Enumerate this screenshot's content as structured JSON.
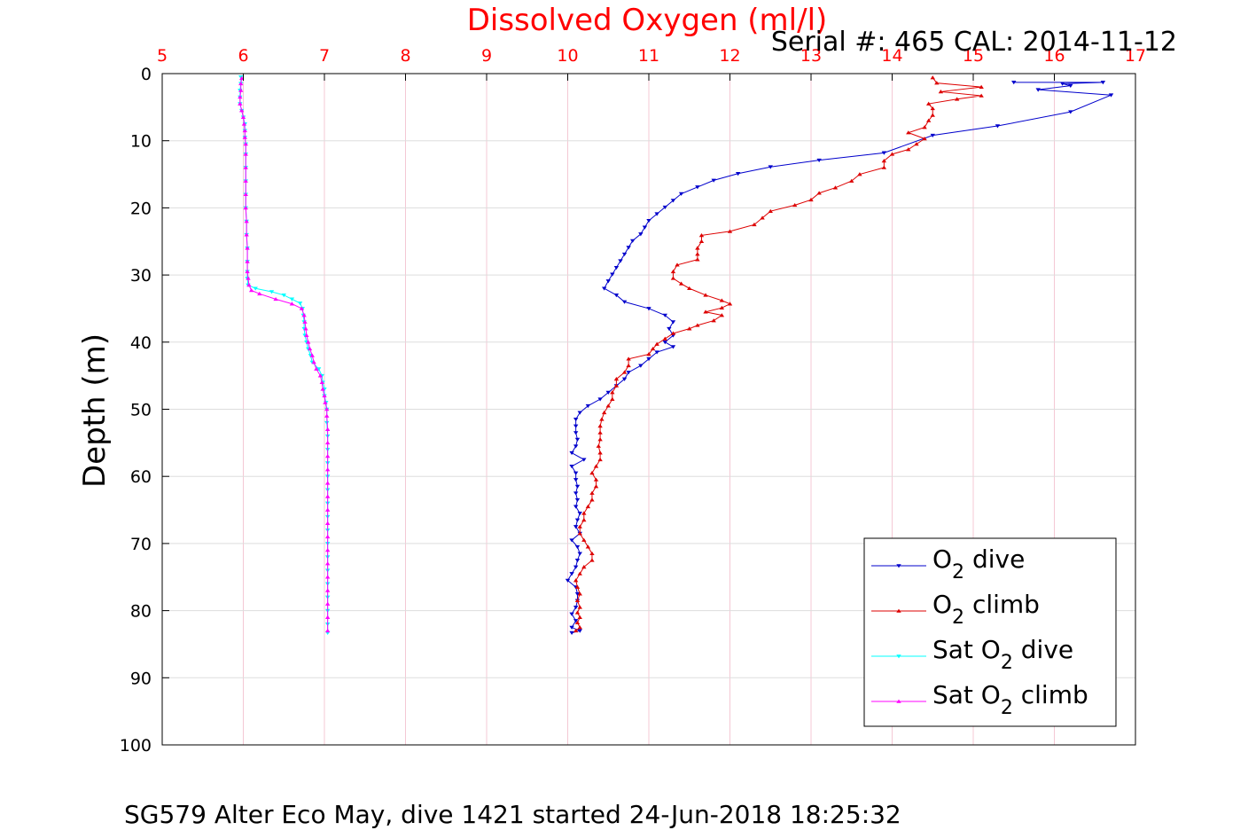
{
  "chart_data": {
    "type": "line",
    "title": "Dissolved Oxygen (ml/l)",
    "subtitle": "Serial #: 465  CAL: 2014-11-12",
    "footer": "SG579 Alter Eco May, dive 1421 started 24-Jun-2018 18:25:32",
    "xlabel": "Dissolved Oxygen (ml/l)",
    "ylabel": "Depth (m)",
    "xlim": [
      5,
      17
    ],
    "ylim": [
      0,
      100
    ],
    "y_reversed": true,
    "x_axis_position": "top",
    "grid": true,
    "legend_position": "bottom-right",
    "x_ticks": [
      "5",
      "6",
      "7",
      "8",
      "9",
      "10",
      "11",
      "12",
      "13",
      "14",
      "15",
      "16",
      "17"
    ],
    "y_ticks": [
      "0",
      "10",
      "20",
      "30",
      "40",
      "50",
      "60",
      "70",
      "80",
      "90",
      "100"
    ],
    "colors": {
      "title": "#ff0000",
      "xtick": "#ff0000",
      "axis": "#000000",
      "grid": "#dddddd",
      "xgrid": "#f4c8d4"
    },
    "series": [
      {
        "legend": {
          "base": "O",
          "sub": "2",
          "suffix": " dive"
        },
        "color": "#0000cc",
        "marker": "triangle-down",
        "points": [
          [
            15.5,
            1.3
          ],
          [
            16.6,
            1.3
          ],
          [
            16.1,
            1.5
          ],
          [
            16.2,
            1.8
          ],
          [
            15.8,
            2.4
          ],
          [
            16.7,
            3.2
          ],
          [
            16.2,
            5.7
          ],
          [
            15.3,
            7.8
          ],
          [
            14.5,
            9.2
          ],
          [
            13.9,
            11.8
          ],
          [
            13.1,
            12.9
          ],
          [
            12.5,
            13.9
          ],
          [
            12.1,
            14.9
          ],
          [
            11.8,
            15.9
          ],
          [
            11.6,
            16.9
          ],
          [
            11.4,
            17.9
          ],
          [
            11.3,
            18.9
          ],
          [
            11.2,
            19.9
          ],
          [
            11.1,
            20.9
          ],
          [
            11.0,
            21.9
          ],
          [
            10.95,
            22.9
          ],
          [
            10.9,
            23.9
          ],
          [
            10.8,
            24.9
          ],
          [
            10.75,
            25.9
          ],
          [
            10.7,
            26.9
          ],
          [
            10.65,
            27.9
          ],
          [
            10.6,
            28.9
          ],
          [
            10.55,
            29.9
          ],
          [
            10.5,
            30.9
          ],
          [
            10.45,
            32.0
          ],
          [
            10.6,
            33.0
          ],
          [
            10.7,
            34.0
          ],
          [
            11.0,
            35.0
          ],
          [
            11.2,
            36.0
          ],
          [
            11.3,
            37.0
          ],
          [
            11.25,
            38.0
          ],
          [
            11.3,
            39.0
          ],
          [
            11.2,
            40.0
          ],
          [
            11.3,
            40.7
          ],
          [
            11.1,
            41.5
          ],
          [
            11.0,
            42.5
          ],
          [
            10.9,
            43.5
          ],
          [
            10.75,
            44.5
          ],
          [
            10.7,
            45.5
          ],
          [
            10.6,
            46.5
          ],
          [
            10.5,
            47.5
          ],
          [
            10.4,
            48.5
          ],
          [
            10.25,
            49.5
          ],
          [
            10.15,
            50.5
          ],
          [
            10.1,
            51.5
          ],
          [
            10.1,
            52.5
          ],
          [
            10.1,
            53.5
          ],
          [
            10.12,
            54.5
          ],
          [
            10.1,
            55.5
          ],
          [
            10.05,
            56.5
          ],
          [
            10.2,
            57.5
          ],
          [
            10.05,
            58.5
          ],
          [
            10.1,
            59.5
          ],
          [
            10.1,
            60.5
          ],
          [
            10.12,
            61.5
          ],
          [
            10.1,
            62.5
          ],
          [
            10.12,
            63.5
          ],
          [
            10.1,
            64.5
          ],
          [
            10.15,
            65.5
          ],
          [
            10.12,
            66.5
          ],
          [
            10.1,
            67.5
          ],
          [
            10.15,
            68.5
          ],
          [
            10.05,
            69.5
          ],
          [
            10.12,
            70.5
          ],
          [
            10.15,
            71.5
          ],
          [
            10.12,
            72.5
          ],
          [
            10.1,
            73.5
          ],
          [
            10.05,
            74.5
          ],
          [
            10.0,
            75.5
          ],
          [
            10.1,
            76.5
          ],
          [
            10.12,
            77.5
          ],
          [
            10.12,
            78.5
          ],
          [
            10.1,
            79.5
          ],
          [
            10.05,
            80.5
          ],
          [
            10.1,
            81.5
          ],
          [
            10.05,
            82.5
          ],
          [
            10.15,
            83.0
          ],
          [
            10.05,
            83.3
          ]
        ]
      },
      {
        "legend": {
          "base": "O",
          "sub": "2",
          "suffix": " climb"
        },
        "color": "#dd0000",
        "marker": "triangle-up",
        "points": [
          [
            10.1,
            83.0
          ],
          [
            10.15,
            82.5
          ],
          [
            10.12,
            81.8
          ],
          [
            10.15,
            81.0
          ],
          [
            10.12,
            80.3
          ],
          [
            10.15,
            79.5
          ],
          [
            10.12,
            78.5
          ],
          [
            10.15,
            77.5
          ],
          [
            10.12,
            76.5
          ],
          [
            10.1,
            75.5
          ],
          [
            10.15,
            74.5
          ],
          [
            10.2,
            73.5
          ],
          [
            10.3,
            72.5
          ],
          [
            10.3,
            71.5
          ],
          [
            10.25,
            70.5
          ],
          [
            10.2,
            69.5
          ],
          [
            10.15,
            68.5
          ],
          [
            10.15,
            67.5
          ],
          [
            10.2,
            66.5
          ],
          [
            10.2,
            65.5
          ],
          [
            10.25,
            64.5
          ],
          [
            10.3,
            63.5
          ],
          [
            10.3,
            62.5
          ],
          [
            10.35,
            61.5
          ],
          [
            10.35,
            60.5
          ],
          [
            10.3,
            59.5
          ],
          [
            10.35,
            58.5
          ],
          [
            10.4,
            57.5
          ],
          [
            10.4,
            56.5
          ],
          [
            10.38,
            55.5
          ],
          [
            10.4,
            54.5
          ],
          [
            10.4,
            53.5
          ],
          [
            10.4,
            52.5
          ],
          [
            10.42,
            51.5
          ],
          [
            10.45,
            50.5
          ],
          [
            10.5,
            49.5
          ],
          [
            10.55,
            48.5
          ],
          [
            10.55,
            47.5
          ],
          [
            10.6,
            46.5
          ],
          [
            10.6,
            45.5
          ],
          [
            10.7,
            44.5
          ],
          [
            10.75,
            43.5
          ],
          [
            10.75,
            42.5
          ],
          [
            11.0,
            41.8
          ],
          [
            11.05,
            41.0
          ],
          [
            11.1,
            40.3
          ],
          [
            11.2,
            39.5
          ],
          [
            11.3,
            38.7
          ],
          [
            11.5,
            38.0
          ],
          [
            11.6,
            37.5
          ],
          [
            11.8,
            36.8
          ],
          [
            11.9,
            36.0
          ],
          [
            11.7,
            35.5
          ],
          [
            11.9,
            34.9
          ],
          [
            12.0,
            34.3
          ],
          [
            11.9,
            33.8
          ],
          [
            11.7,
            33.0
          ],
          [
            11.5,
            32.0
          ],
          [
            11.4,
            31.3
          ],
          [
            11.3,
            30.5
          ],
          [
            11.3,
            29.5
          ],
          [
            11.35,
            28.5
          ],
          [
            11.6,
            27.7
          ],
          [
            11.6,
            26.9
          ],
          [
            11.6,
            26.0
          ],
          [
            11.65,
            25.0
          ],
          [
            11.65,
            24.1
          ],
          [
            12.0,
            23.5
          ],
          [
            12.3,
            22.5
          ],
          [
            12.4,
            21.5
          ],
          [
            12.5,
            20.5
          ],
          [
            12.8,
            19.6
          ],
          [
            13.0,
            18.8
          ],
          [
            13.1,
            17.8
          ],
          [
            13.3,
            17.0
          ],
          [
            13.5,
            16.0
          ],
          [
            13.6,
            15.0
          ],
          [
            13.9,
            14.0
          ],
          [
            13.9,
            13.0
          ],
          [
            14.0,
            12.0
          ],
          [
            14.2,
            11.3
          ],
          [
            14.3,
            10.5
          ],
          [
            14.4,
            9.7
          ],
          [
            14.2,
            8.8
          ],
          [
            14.4,
            8.0
          ],
          [
            14.45,
            7.0
          ],
          [
            14.5,
            6.2
          ],
          [
            14.5,
            5.2
          ],
          [
            14.45,
            4.5
          ],
          [
            14.8,
            3.8
          ],
          [
            15.1,
            3.3
          ],
          [
            14.6,
            2.7
          ],
          [
            15.1,
            2.0
          ],
          [
            14.55,
            1.4
          ],
          [
            14.5,
            0.6
          ]
        ]
      },
      {
        "legend": {
          "base": "Sat O",
          "sub": "2",
          "suffix": " dive"
        },
        "color": "#00ffff",
        "marker": "triangle-down",
        "points": [
          [
            5.97,
            0.5
          ],
          [
            5.97,
            1.5
          ],
          [
            5.96,
            2.5
          ],
          [
            5.96,
            3.5
          ],
          [
            5.96,
            4.5
          ],
          [
            5.98,
            5.5
          ],
          [
            6.0,
            6.5
          ],
          [
            6.02,
            7.5
          ],
          [
            6.02,
            8.5
          ],
          [
            6.02,
            9.5
          ],
          [
            6.03,
            10.5
          ],
          [
            6.03,
            12
          ],
          [
            6.03,
            14
          ],
          [
            6.03,
            16
          ],
          [
            6.03,
            18
          ],
          [
            6.03,
            20
          ],
          [
            6.04,
            22
          ],
          [
            6.04,
            24
          ],
          [
            6.05,
            26
          ],
          [
            6.05,
            28
          ],
          [
            6.05,
            29.5
          ],
          [
            6.05,
            30.5
          ],
          [
            6.06,
            31.5
          ],
          [
            6.15,
            32.0
          ],
          [
            6.35,
            32.5
          ],
          [
            6.5,
            33.0
          ],
          [
            6.6,
            33.6
          ],
          [
            6.7,
            34.2
          ],
          [
            6.73,
            35.0
          ],
          [
            6.74,
            36.0
          ],
          [
            6.75,
            37.0
          ],
          [
            6.75,
            38.0
          ],
          [
            6.76,
            39.0
          ],
          [
            6.78,
            40.0
          ],
          [
            6.8,
            41.0
          ],
          [
            6.83,
            42.0
          ],
          [
            6.85,
            43.0
          ],
          [
            6.93,
            44.0
          ],
          [
            6.97,
            45.0
          ],
          [
            6.98,
            46.0
          ],
          [
            7.0,
            47.0
          ],
          [
            7.0,
            48.0
          ],
          [
            7.02,
            49.0
          ],
          [
            7.03,
            50.0
          ],
          [
            7.03,
            52
          ],
          [
            7.04,
            54
          ],
          [
            7.04,
            56
          ],
          [
            7.04,
            58
          ],
          [
            7.04,
            60
          ],
          [
            7.04,
            62
          ],
          [
            7.04,
            64
          ],
          [
            7.04,
            66
          ],
          [
            7.04,
            68
          ],
          [
            7.04,
            70
          ],
          [
            7.04,
            72
          ],
          [
            7.04,
            74
          ],
          [
            7.04,
            76
          ],
          [
            7.04,
            78
          ],
          [
            7.04,
            80
          ],
          [
            7.04,
            82
          ],
          [
            7.04,
            83.3
          ]
        ]
      },
      {
        "legend": {
          "base": "Sat O",
          "sub": "2",
          "suffix": " climb"
        },
        "color": "#ff00ff",
        "marker": "triangle-up",
        "points": [
          [
            7.04,
            83.0
          ],
          [
            7.04,
            81
          ],
          [
            7.04,
            79
          ],
          [
            7.04,
            77
          ],
          [
            7.04,
            75
          ],
          [
            7.04,
            73
          ],
          [
            7.04,
            71
          ],
          [
            7.04,
            69
          ],
          [
            7.04,
            67
          ],
          [
            7.04,
            65
          ],
          [
            7.04,
            63
          ],
          [
            7.04,
            61
          ],
          [
            7.04,
            59
          ],
          [
            7.04,
            57
          ],
          [
            7.04,
            55
          ],
          [
            7.04,
            53
          ],
          [
            7.03,
            51
          ],
          [
            7.03,
            50
          ],
          [
            7.01,
            49
          ],
          [
            7.0,
            48
          ],
          [
            6.98,
            47
          ],
          [
            6.97,
            46
          ],
          [
            6.95,
            45
          ],
          [
            6.9,
            44
          ],
          [
            6.87,
            43
          ],
          [
            6.85,
            42
          ],
          [
            6.82,
            41
          ],
          [
            6.8,
            40
          ],
          [
            6.78,
            39
          ],
          [
            6.77,
            38
          ],
          [
            6.76,
            37
          ],
          [
            6.75,
            36
          ],
          [
            6.72,
            35
          ],
          [
            6.6,
            34.3
          ],
          [
            6.4,
            33.6
          ],
          [
            6.2,
            32.8
          ],
          [
            6.1,
            32.3
          ],
          [
            6.07,
            31.5
          ],
          [
            6.06,
            30.5
          ],
          [
            6.05,
            29.5
          ],
          [
            6.05,
            28
          ],
          [
            6.05,
            26
          ],
          [
            6.04,
            24
          ],
          [
            6.04,
            22
          ],
          [
            6.03,
            20
          ],
          [
            6.03,
            18
          ],
          [
            6.03,
            16
          ],
          [
            6.03,
            14
          ],
          [
            6.03,
            12
          ],
          [
            6.03,
            10.5
          ],
          [
            6.02,
            9.5
          ],
          [
            6.02,
            8.5
          ],
          [
            6.01,
            7.5
          ],
          [
            6.0,
            6.5
          ],
          [
            5.98,
            5.5
          ],
          [
            5.96,
            4.5
          ],
          [
            5.96,
            3.5
          ],
          [
            5.97,
            2.5
          ],
          [
            5.97,
            1.5
          ],
          [
            5.98,
            0.7
          ]
        ]
      }
    ]
  }
}
